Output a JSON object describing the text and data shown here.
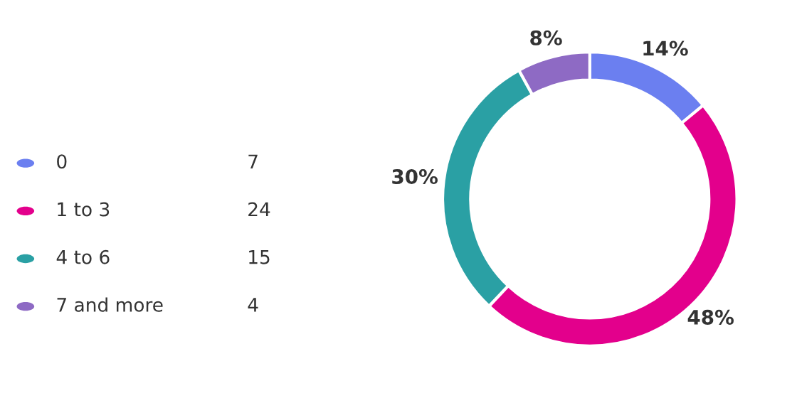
{
  "chart_data": {
    "type": "donut",
    "categories": [
      "0",
      "1 to 3",
      "4 to 6",
      "7 and more"
    ],
    "values": [
      14,
      48,
      30,
      8
    ],
    "colors": [
      "#6b7ff0",
      "#e3008c",
      "#2aa0a4",
      "#8e6ac4"
    ],
    "value_labels": [
      "14%",
      "48%",
      "30%",
      "8%"
    ],
    "annotations": [
      "7",
      "24",
      "15",
      "4"
    ],
    "legend": "left"
  }
}
